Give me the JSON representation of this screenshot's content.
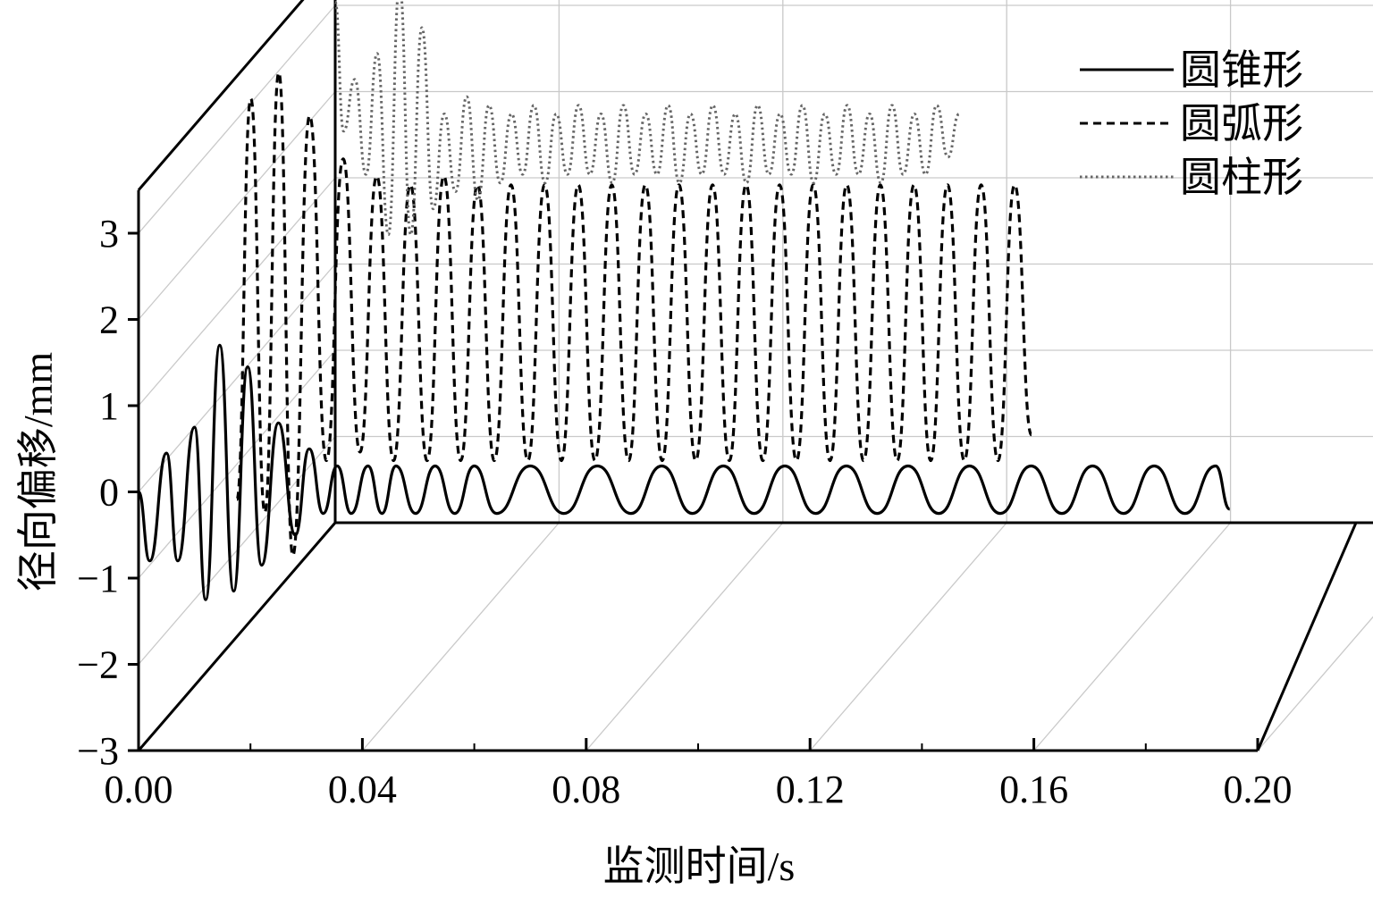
{
  "chart_data": {
    "type": "line",
    "style": "3d-waterfall",
    "xlabel": "监测时间/s",
    "ylabel": "径向偏移/mm",
    "xlim": [
      0.0,
      0.2
    ],
    "ylim": [
      -3,
      3.5
    ],
    "x_ticks": [
      "0.00",
      "0.04",
      "0.08",
      "0.12",
      "0.16",
      "0.20"
    ],
    "y_ticks": [
      "−3",
      "−2",
      "−1",
      "0",
      "1",
      "2",
      "3"
    ],
    "grid": true,
    "legend_position": "top-right",
    "series": [
      {
        "name": "圆锥形",
        "line_style": "solid",
        "color": "#000000",
        "depth": 0,
        "x": [
          0.0,
          0.002,
          0.005,
          0.007,
          0.01,
          0.012,
          0.0145,
          0.017,
          0.0195,
          0.022,
          0.025,
          0.028,
          0.0305,
          0.033,
          0.0355,
          0.038,
          0.041,
          0.0435,
          0.046,
          0.0495,
          0.053,
          0.0565,
          0.06,
          0.064,
          0.07,
          0.076,
          0.082,
          0.088,
          0.0935,
          0.099,
          0.1045,
          0.11,
          0.1155,
          0.121,
          0.1265,
          0.132,
          0.1375,
          0.143,
          0.1485,
          0.154,
          0.1595,
          0.165,
          0.1705,
          0.176,
          0.1815,
          0.187,
          0.1925,
          0.195
        ],
        "y": [
          0,
          -0.8,
          0.45,
          -0.8,
          0.75,
          -1.25,
          1.7,
          -1.15,
          1.45,
          -0.85,
          0.8,
          -0.5,
          0.5,
          -0.25,
          0.3,
          -0.25,
          0.3,
          -0.25,
          0.3,
          -0.25,
          0.3,
          -0.25,
          0.3,
          -0.25,
          0.3,
          -0.25,
          0.3,
          -0.25,
          0.3,
          -0.25,
          0.3,
          -0.25,
          0.3,
          -0.25,
          0.3,
          -0.25,
          0.3,
          -0.25,
          0.3,
          -0.25,
          0.3,
          -0.25,
          0.3,
          -0.25,
          0.3,
          -0.25,
          0.3,
          -0.2
        ]
      },
      {
        "name": "圆弧形",
        "line_style": "dashed",
        "color": "#000000",
        "depth": 0.5,
        "x": [
          0.0,
          0.0025,
          0.005,
          0.0075,
          0.01,
          0.013,
          0.016,
          0.019,
          0.022,
          0.025,
          0.028,
          0.031,
          0.034,
          0.037,
          0.04,
          0.043,
          0.046,
          0.049,
          0.052,
          0.055,
          0.058,
          0.061,
          0.064,
          0.067,
          0.07,
          0.073,
          0.076,
          0.079,
          0.082,
          0.085,
          0.088,
          0.091,
          0.094,
          0.097,
          0.1,
          0.103,
          0.106,
          0.109,
          0.112,
          0.115,
          0.118,
          0.121,
          0.124,
          0.127,
          0.13,
          0.133,
          0.136,
          0.139,
          0.142
        ],
        "y": [
          -1.15,
          3.5,
          -1.3,
          3.8,
          -1.8,
          3.3,
          -0.7,
          2.8,
          -0.6,
          2.6,
          -0.7,
          2.5,
          -0.7,
          2.6,
          -0.7,
          2.5,
          -0.7,
          2.5,
          -0.7,
          2.5,
          -0.7,
          2.5,
          -0.7,
          2.5,
          -0.7,
          2.5,
          -0.7,
          2.5,
          -0.7,
          2.5,
          -0.7,
          2.5,
          -0.7,
          2.5,
          -0.7,
          2.5,
          -0.7,
          2.5,
          -0.7,
          2.5,
          -0.7,
          2.5,
          -0.7,
          2.5,
          -0.7,
          2.5,
          -0.7,
          2.5,
          -0.4
        ]
      },
      {
        "name": "圆柱形",
        "line_style": "dotted",
        "color": "#666666",
        "depth": 1,
        "x": [
          0.0,
          0.0015,
          0.0035,
          0.0055,
          0.0075,
          0.0095,
          0.0115,
          0.0135,
          0.0155,
          0.0175,
          0.0195,
          0.0215,
          0.0235,
          0.0255,
          0.0275,
          0.0295,
          0.0315,
          0.0335,
          0.0355,
          0.0375,
          0.0395,
          0.0415,
          0.0435,
          0.0455,
          0.0475,
          0.0495,
          0.0515,
          0.0535,
          0.0555,
          0.0575,
          0.0595,
          0.0615,
          0.0635,
          0.0655,
          0.0675,
          0.0695,
          0.0715,
          0.0735,
          0.0755,
          0.0775,
          0.0795,
          0.0815,
          0.0835,
          0.0855,
          0.0875,
          0.0895,
          0.0915,
          0.0935,
          0.0955,
          0.0975,
          0.0995,
          0.1015,
          0.1035,
          0.1055,
          0.1075,
          0.1095,
          0.1115
        ],
        "y": [
          3.3,
          1.8,
          2.4,
          1.3,
          2.7,
          0.6,
          3.5,
          0.6,
          3.0,
          0.9,
          2.0,
          1.1,
          2.2,
          1.0,
          2.1,
          1.2,
          2.0,
          1.3,
          2.1,
          1.2,
          2.0,
          1.3,
          2.1,
          1.3,
          2.0,
          1.2,
          2.1,
          1.3,
          2.0,
          1.3,
          2.1,
          1.2,
          2.0,
          1.3,
          2.1,
          1.3,
          2.0,
          1.2,
          2.1,
          1.3,
          2.0,
          1.3,
          2.1,
          1.2,
          2.0,
          1.3,
          2.1,
          1.3,
          2.0,
          1.2,
          2.1,
          1.3,
          2.0,
          1.3,
          2.1,
          1.5,
          2.0
        ]
      }
    ]
  }
}
